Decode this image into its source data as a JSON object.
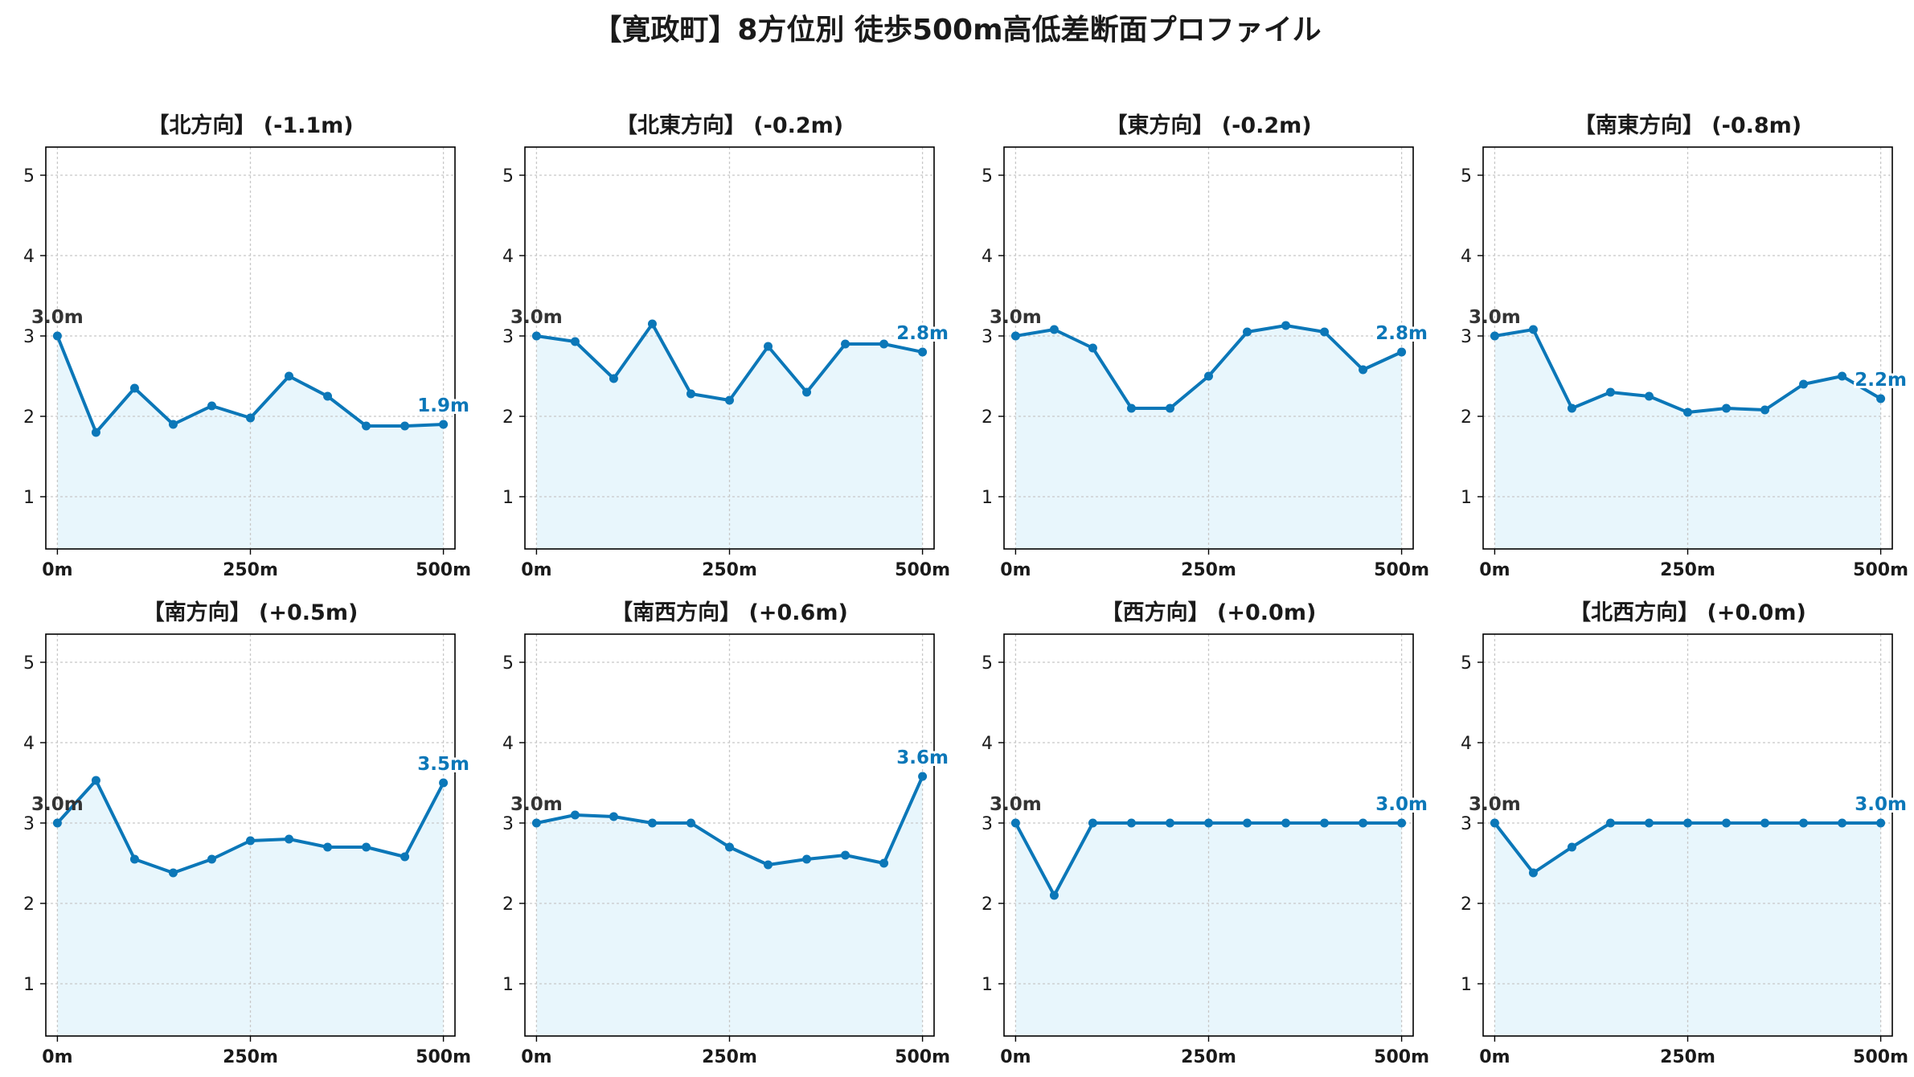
{
  "title": "【寛政町】8方位別 徒歩500m高低差断面プロファイル",
  "colors": {
    "line": "#0b77b8",
    "fill": "#e8f6fc",
    "start_label": "#333333",
    "end_label": "#0b77b8",
    "grid": "#c8c8c8"
  },
  "chart_data": [
    {
      "type": "area",
      "title": "【北方向】 (-1.1m)",
      "x": [
        0,
        50,
        100,
        150,
        200,
        250,
        300,
        350,
        400,
        450,
        500
      ],
      "values": [
        3.0,
        1.8,
        2.35,
        1.9,
        2.13,
        1.98,
        2.5,
        2.25,
        1.88,
        1.88,
        1.9
      ],
      "start_label": "3.0m",
      "end_label": "1.9m",
      "xticks": [
        "0m",
        "250m",
        "500m"
      ],
      "yticks": [
        1,
        2,
        3,
        4,
        5
      ],
      "xlim": [
        -15,
        515
      ],
      "ylim": [
        0.35,
        5.35
      ],
      "grid": true
    },
    {
      "type": "area",
      "title": "【北東方向】 (-0.2m)",
      "x": [
        0,
        50,
        100,
        150,
        200,
        250,
        300,
        350,
        400,
        450,
        500
      ],
      "values": [
        3.0,
        2.93,
        2.47,
        3.15,
        2.28,
        2.2,
        2.87,
        2.3,
        2.9,
        2.9,
        2.8
      ],
      "start_label": "3.0m",
      "end_label": "2.8m",
      "xticks": [
        "0m",
        "250m",
        "500m"
      ],
      "yticks": [
        1,
        2,
        3,
        4,
        5
      ],
      "xlim": [
        -15,
        515
      ],
      "ylim": [
        0.35,
        5.35
      ],
      "grid": true
    },
    {
      "type": "area",
      "title": "【東方向】 (-0.2m)",
      "x": [
        0,
        50,
        100,
        150,
        200,
        250,
        300,
        350,
        400,
        450,
        500
      ],
      "values": [
        3.0,
        3.08,
        2.85,
        2.1,
        2.1,
        2.5,
        3.05,
        3.13,
        3.05,
        2.58,
        2.8
      ],
      "start_label": "3.0m",
      "end_label": "2.8m",
      "xticks": [
        "0m",
        "250m",
        "500m"
      ],
      "yticks": [
        1,
        2,
        3,
        4,
        5
      ],
      "xlim": [
        -15,
        515
      ],
      "ylim": [
        0.35,
        5.35
      ],
      "grid": true
    },
    {
      "type": "area",
      "title": "【南東方向】 (-0.8m)",
      "x": [
        0,
        50,
        100,
        150,
        200,
        250,
        300,
        350,
        400,
        450,
        500
      ],
      "values": [
        3.0,
        3.08,
        2.1,
        2.3,
        2.25,
        2.05,
        2.1,
        2.08,
        2.4,
        2.5,
        2.22
      ],
      "start_label": "3.0m",
      "end_label": "2.2m",
      "xticks": [
        "0m",
        "250m",
        "500m"
      ],
      "yticks": [
        1,
        2,
        3,
        4,
        5
      ],
      "xlim": [
        -15,
        515
      ],
      "ylim": [
        0.35,
        5.35
      ],
      "grid": true
    },
    {
      "type": "area",
      "title": "【南方向】 (+0.5m)",
      "x": [
        0,
        50,
        100,
        150,
        200,
        250,
        300,
        350,
        400,
        450,
        500
      ],
      "values": [
        3.0,
        3.53,
        2.55,
        2.38,
        2.55,
        2.78,
        2.8,
        2.7,
        2.7,
        2.58,
        3.5
      ],
      "start_label": "3.0m",
      "end_label": "3.5m",
      "xticks": [
        "0m",
        "250m",
        "500m"
      ],
      "yticks": [
        1,
        2,
        3,
        4,
        5
      ],
      "xlim": [
        -15,
        515
      ],
      "ylim": [
        0.35,
        5.35
      ],
      "grid": true
    },
    {
      "type": "area",
      "title": "【南西方向】 (+0.6m)",
      "x": [
        0,
        50,
        100,
        150,
        200,
        250,
        300,
        350,
        400,
        450,
        500
      ],
      "values": [
        3.0,
        3.1,
        3.08,
        3.0,
        3.0,
        2.7,
        2.48,
        2.55,
        2.6,
        2.5,
        3.58
      ],
      "start_label": "3.0m",
      "end_label": "3.6m",
      "xticks": [
        "0m",
        "250m",
        "500m"
      ],
      "yticks": [
        1,
        2,
        3,
        4,
        5
      ],
      "xlim": [
        -15,
        515
      ],
      "ylim": [
        0.35,
        5.35
      ],
      "grid": true
    },
    {
      "type": "area",
      "title": "【西方向】 (+0.0m)",
      "x": [
        0,
        50,
        100,
        150,
        200,
        250,
        300,
        350,
        400,
        450,
        500
      ],
      "values": [
        3.0,
        2.1,
        3.0,
        3.0,
        3.0,
        3.0,
        3.0,
        3.0,
        3.0,
        3.0,
        3.0
      ],
      "start_label": "3.0m",
      "end_label": "3.0m",
      "xticks": [
        "0m",
        "250m",
        "500m"
      ],
      "yticks": [
        1,
        2,
        3,
        4,
        5
      ],
      "xlim": [
        -15,
        515
      ],
      "ylim": [
        0.35,
        5.35
      ],
      "grid": true
    },
    {
      "type": "area",
      "title": "【北西方向】 (+0.0m)",
      "x": [
        0,
        50,
        100,
        150,
        200,
        250,
        300,
        350,
        400,
        450,
        500
      ],
      "values": [
        3.0,
        2.38,
        2.7,
        3.0,
        3.0,
        3.0,
        3.0,
        3.0,
        3.0,
        3.0,
        3.0
      ],
      "start_label": "3.0m",
      "end_label": "3.0m",
      "xticks": [
        "0m",
        "250m",
        "500m"
      ],
      "yticks": [
        1,
        2,
        3,
        4,
        5
      ],
      "xlim": [
        -15,
        515
      ],
      "ylim": [
        0.35,
        5.35
      ],
      "grid": true
    }
  ]
}
